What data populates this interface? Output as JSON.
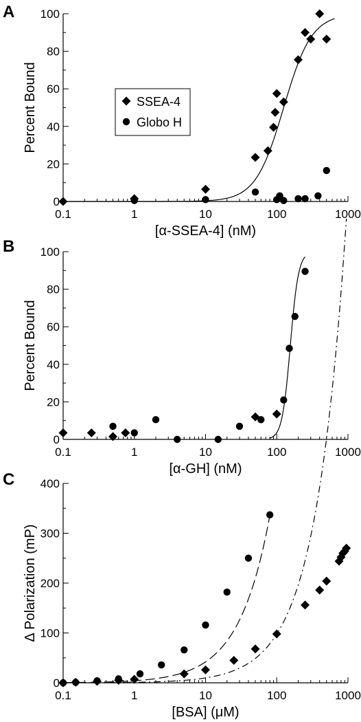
{
  "chart_data": [
    {
      "panel": "A",
      "type": "scatter",
      "xlabel": "[α-SSEA-4] (nM)",
      "ylabel": "Percent Bound",
      "xscale": "log",
      "xlim": [
        0.1,
        1000
      ],
      "ylim": [
        0,
        100
      ],
      "xticks": [
        0.1,
        1,
        10,
        100,
        1000
      ],
      "xtick_labels": [
        "0.1",
        "1",
        "10",
        "100",
        "1000"
      ],
      "yticks": [
        0,
        20,
        40,
        60,
        80,
        100
      ],
      "ytick_labels": [
        "0",
        "20",
        "40",
        "60",
        "80",
        "100"
      ],
      "grid": false,
      "legend_position": "center-left",
      "series": [
        {
          "name": "SSEA-4",
          "marker": "diamond",
          "x": [
            0.1,
            1,
            10,
            50,
            75,
            90,
            95,
            100,
            125,
            200,
            250,
            300,
            400,
            500
          ],
          "y": [
            0,
            1.5,
            6.5,
            23.5,
            27,
            39.5,
            47.5,
            57.5,
            53,
            75.5,
            90,
            86.5,
            100,
            86.5
          ]
        },
        {
          "name": "Globo H",
          "marker": "circle",
          "x": [
            1,
            10,
            50,
            100,
            110,
            125,
            200,
            250,
            380,
            500
          ],
          "y": [
            0.5,
            1,
            5,
            1,
            3,
            0.5,
            1.5,
            1.5,
            3,
            16.5
          ]
        }
      ],
      "fits": [
        {
          "style": "solid",
          "x_range": [
            0.1,
            650
          ],
          "ec50": 125,
          "hill": 2.2,
          "top": 100
        }
      ]
    },
    {
      "panel": "B",
      "type": "scatter",
      "xlabel": "[α-GH] (nM)",
      "ylabel": "Percent Bound",
      "xscale": "log",
      "xlim": [
        0.1,
        1000
      ],
      "ylim": [
        0,
        100
      ],
      "xticks": [
        0.1,
        1,
        10,
        100,
        1000
      ],
      "xtick_labels": [
        "0.1",
        "1",
        "10",
        "100",
        "1000"
      ],
      "yticks": [
        0,
        20,
        40,
        60,
        80,
        100
      ],
      "ytick_labels": [
        "0",
        "20",
        "40",
        "60",
        "80",
        "100"
      ],
      "grid": false,
      "series": [
        {
          "marker": "diamond",
          "x": [
            0.1,
            0.25,
            0.5,
            0.75,
            50,
            100
          ],
          "y": [
            3.5,
            3.5,
            1.5,
            3.5,
            12,
            13.5
          ]
        },
        {
          "marker": "circle",
          "x": [
            0.5,
            1,
            2,
            4,
            15,
            30,
            60,
            125,
            150,
            180,
            250
          ],
          "y": [
            7,
            3.5,
            10.5,
            0,
            0,
            7,
            10.5,
            21,
            48.5,
            65.5,
            89.5
          ]
        }
      ],
      "fits": [
        {
          "style": "solid",
          "x_range": [
            80,
            250
          ],
          "ec50": 155,
          "hill": 7.5,
          "top": 100
        }
      ]
    },
    {
      "panel": "C",
      "type": "scatter",
      "xlabel": "[BSA] (μM)",
      "ylabel": "Δ Polarization (mP)",
      "xscale": "log",
      "xlim": [
        0.1,
        1000
      ],
      "ylim": [
        0,
        400
      ],
      "xticks": [
        0.1,
        1,
        10,
        100,
        1000
      ],
      "xtick_labels": [
        "0.1",
        "1",
        "10",
        "100",
        "1000"
      ],
      "yticks": [
        0,
        100,
        200,
        300,
        400
      ],
      "ytick_labels": [
        "0",
        "100",
        "200",
        "300",
        "400"
      ],
      "grid": false,
      "series": [
        {
          "marker": "circle",
          "x": [
            0.1,
            0.15,
            0.3,
            0.6,
            1.2,
            2.4,
            5,
            10,
            20,
            40,
            80
          ],
          "y": [
            0,
            1,
            4,
            8,
            18,
            36,
            66,
            116,
            182,
            250,
            337
          ]
        },
        {
          "marker": "diamond",
          "x": [
            0.1,
            0.15,
            0.3,
            0.6,
            1,
            5,
            10,
            25,
            50,
            100,
            250,
            400,
            500,
            750,
            800,
            850,
            900,
            950
          ],
          "y": [
            0,
            1,
            3,
            5,
            7,
            18,
            26,
            45,
            68,
            98,
            156,
            186,
            204,
            244,
            252,
            260,
            264,
            270
          ]
        }
      ],
      "fits": [
        {
          "style": "dashed",
          "x_range": [
            0.1,
            80
          ],
          "slope": 4.2
        },
        {
          "style": "dashdot",
          "x_range": [
            0.1,
            950
          ],
          "slope": 0.98
        }
      ]
    }
  ]
}
